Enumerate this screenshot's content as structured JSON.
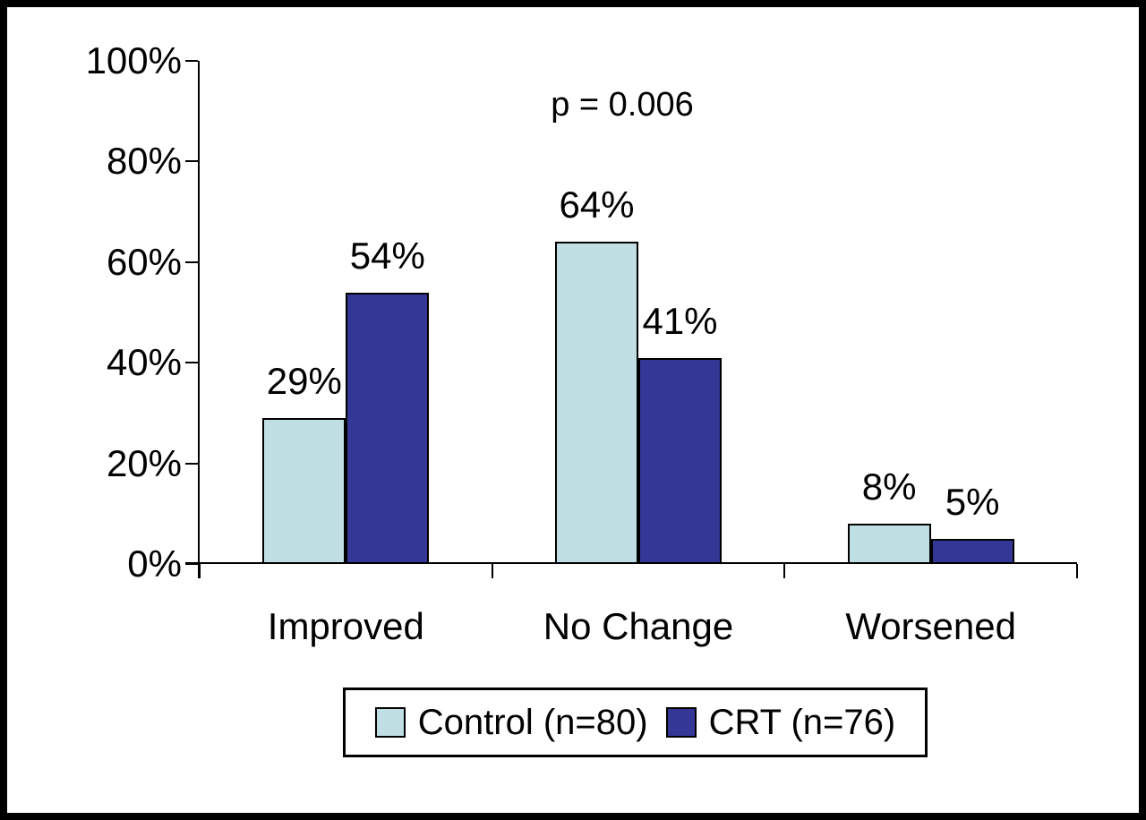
{
  "figure": {
    "background": "#ffffff",
    "frame_color": "#000000",
    "text_color": "#000000"
  },
  "chart_data": {
    "type": "bar",
    "title": "",
    "xlabel": "",
    "ylabel": "",
    "categories": [
      "Improved",
      "No Change",
      "Worsened"
    ],
    "series": [
      {
        "name": "Control (n=80)",
        "color": "#bfdfe4",
        "values": [
          29,
          64,
          8
        ],
        "labels": [
          "29%",
          "64%",
          "8%"
        ]
      },
      {
        "name": "CRT (n=76)",
        "color": "#343795",
        "values": [
          54,
          41,
          5
        ],
        "labels": [
          "54%",
          "41%",
          "5%"
        ]
      }
    ],
    "annotation": "p = 0.006",
    "y_axis": {
      "range": [
        0,
        100
      ],
      "ticks": [
        0,
        20,
        40,
        60,
        80,
        100
      ],
      "tick_labels": [
        "0%",
        "20%",
        "40%",
        "60%",
        "80%",
        "100%"
      ]
    },
    "grid": false,
    "legend": {
      "position": "bottom",
      "entries": [
        "Control (n=80)",
        "CRT (n=76)"
      ]
    }
  }
}
